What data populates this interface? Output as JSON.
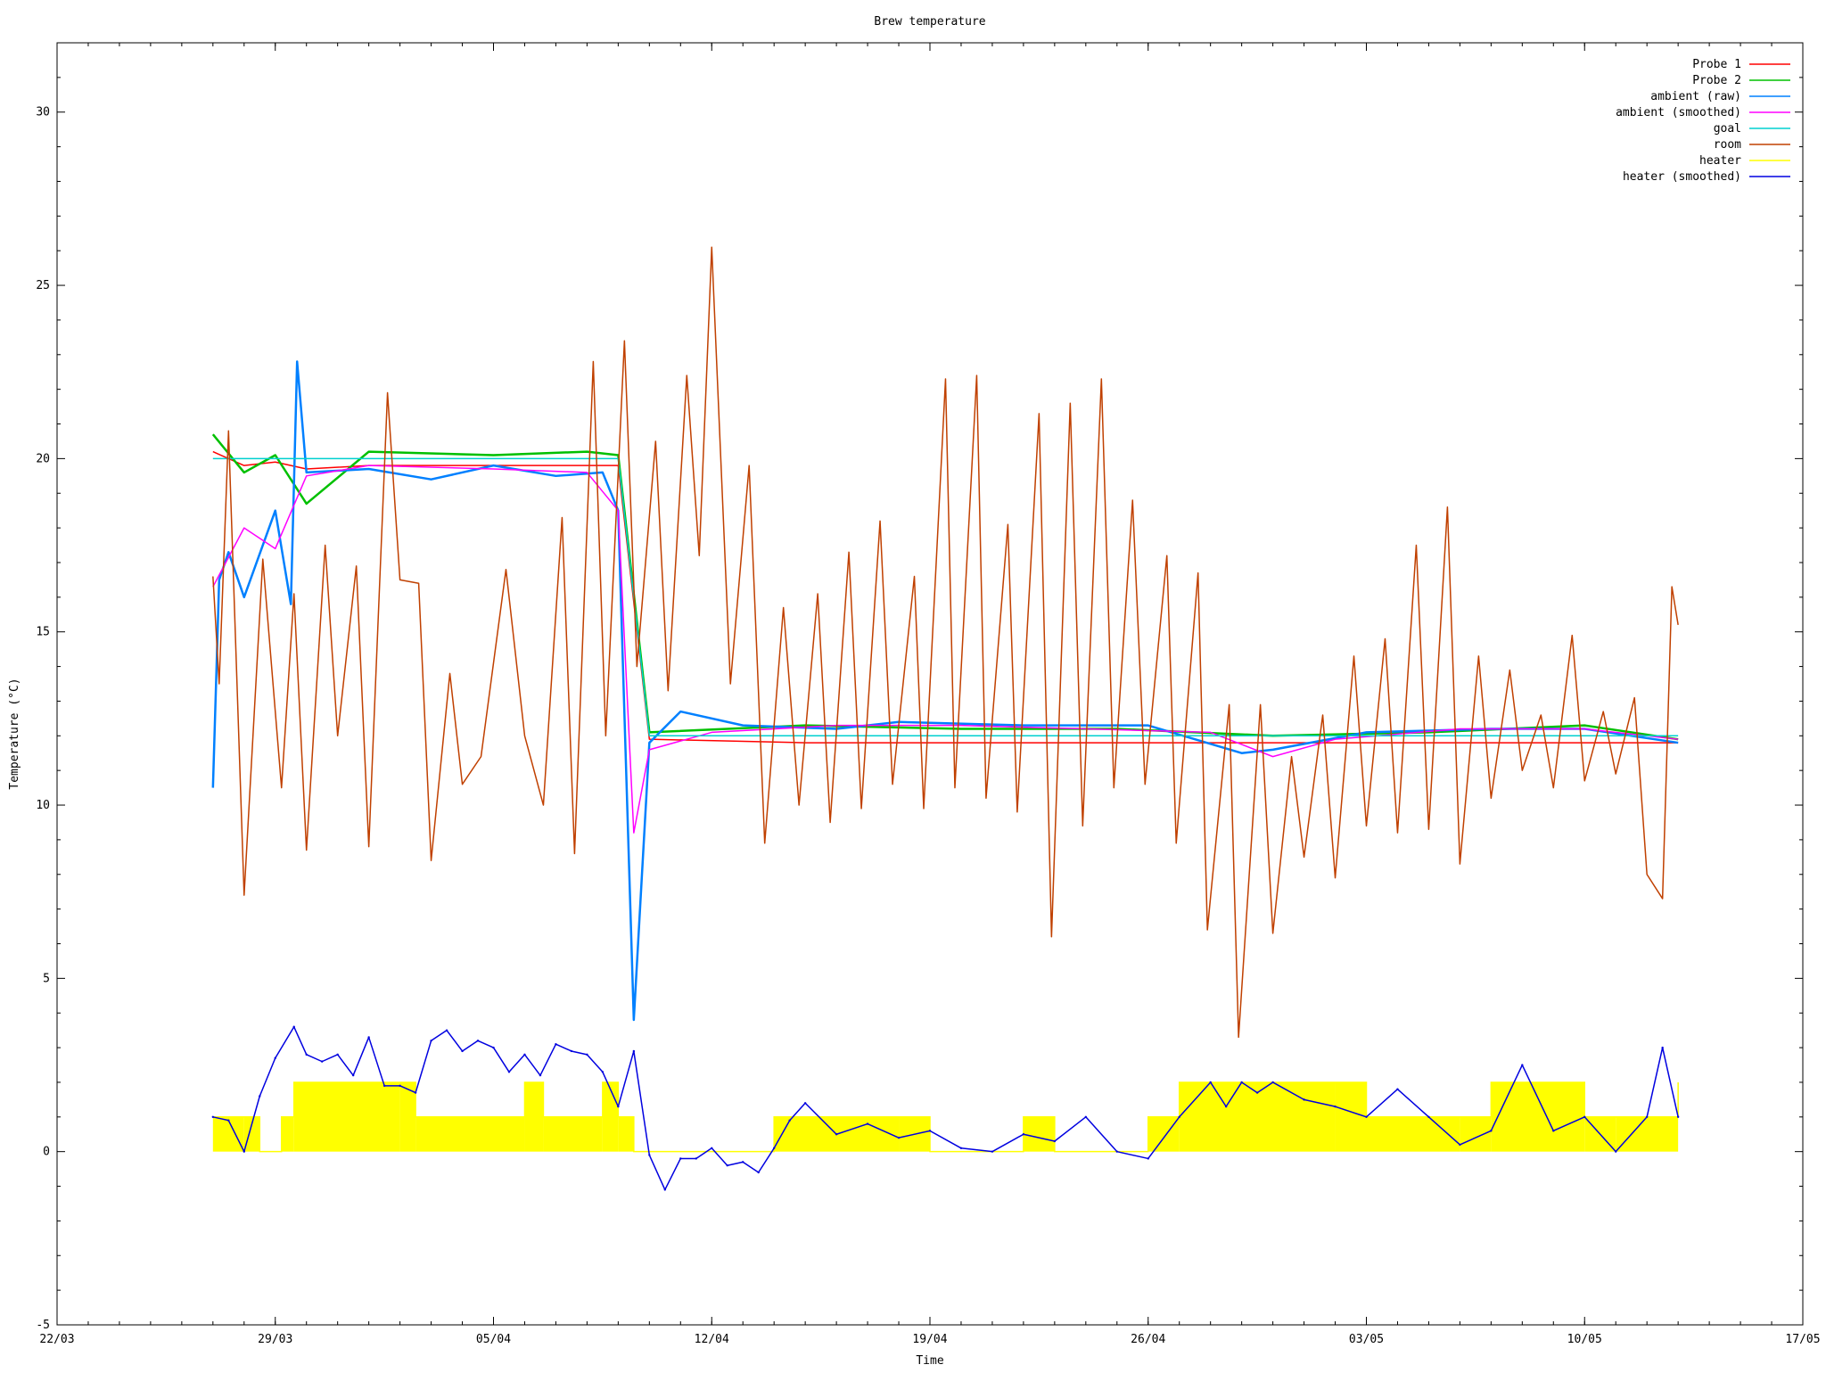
{
  "chart_data": {
    "type": "line",
    "title": "Brew temperature",
    "xlabel": "Time",
    "ylabel": "Temperature (°C)",
    "xlim": [
      "2015-03-22",
      "2015-05-17"
    ],
    "ylim": [
      -5,
      32
    ],
    "x_ticks": [
      {
        "date": "2015-03-22",
        "label": "22/03"
      },
      {
        "date": "2015-03-29",
        "label": "29/03"
      },
      {
        "date": "2015-04-05",
        "label": "05/04"
      },
      {
        "date": "2015-04-12",
        "label": "12/04"
      },
      {
        "date": "2015-04-19",
        "label": "19/04"
      },
      {
        "date": "2015-04-26",
        "label": "26/04"
      },
      {
        "date": "2015-05-03",
        "label": "03/05"
      },
      {
        "date": "2015-05-10",
        "label": "10/05"
      },
      {
        "date": "2015-05-17",
        "label": "17/05"
      }
    ],
    "y_ticks": [
      {
        "value": -5,
        "label": "-5"
      },
      {
        "value": 0,
        "label": "0"
      },
      {
        "value": 5,
        "label": "5"
      },
      {
        "value": 10,
        "label": "10"
      },
      {
        "value": 15,
        "label": "15"
      },
      {
        "value": 20,
        "label": "20"
      },
      {
        "value": 25,
        "label": "25"
      },
      {
        "value": 30,
        "label": "30"
      }
    ],
    "legend_position": "top-right",
    "grid": false,
    "series": [
      {
        "name": "Probe 1",
        "color": "#ff0000",
        "x": [
          "2015-03-27",
          "2015-03-28",
          "2015-03-29",
          "2015-03-30",
          "2015-04-01",
          "2015-04-05",
          "2015-04-08",
          "2015-04-09",
          "2015-04-10",
          "2015-04-15",
          "2015-04-20",
          "2015-04-25",
          "2015-04-30",
          "2015-05-05",
          "2015-05-10",
          "2015-05-13"
        ],
        "y": [
          20.2,
          19.8,
          19.9,
          19.7,
          19.8,
          19.8,
          19.8,
          19.8,
          11.9,
          11.8,
          11.8,
          11.8,
          11.8,
          11.8,
          11.8,
          11.8
        ]
      },
      {
        "name": "Probe 2",
        "color": "#00c000",
        "x": [
          "2015-03-27",
          "2015-03-28",
          "2015-03-29",
          "2015-03-30",
          "2015-04-01",
          "2015-04-05",
          "2015-04-08",
          "2015-04-09",
          "2015-04-10",
          "2015-04-15",
          "2015-04-20",
          "2015-04-25",
          "2015-04-30",
          "2015-05-05",
          "2015-05-10",
          "2015-05-13"
        ],
        "y": [
          20.7,
          19.6,
          20.1,
          18.7,
          20.2,
          20.1,
          20.2,
          20.1,
          12.1,
          12.3,
          12.2,
          12.2,
          12.0,
          12.1,
          12.3,
          11.9
        ]
      },
      {
        "name": "ambient (raw)",
        "color": "#0080ff",
        "x": [
          "2015-03-27",
          "2015-03-27.2",
          "2015-03-27.5",
          "2015-03-28",
          "2015-03-29",
          "2015-03-29.5",
          "2015-03-29.7",
          "2015-03-30",
          "2015-04-01",
          "2015-04-03",
          "2015-04-05",
          "2015-04-07",
          "2015-04-08.5",
          "2015-04-09",
          "2015-04-09.5",
          "2015-04-10",
          "2015-04-11",
          "2015-04-13",
          "2015-04-16",
          "2015-04-18",
          "2015-04-22",
          "2015-04-26",
          "2015-04-29",
          "2015-04-30",
          "2015-05-03",
          "2015-05-07",
          "2015-05-10",
          "2015-05-13"
        ],
        "y": [
          10.5,
          16.5,
          17.3,
          16.0,
          18.5,
          15.8,
          22.8,
          19.6,
          19.7,
          19.4,
          19.8,
          19.5,
          19.6,
          18.5,
          3.8,
          11.8,
          12.7,
          12.3,
          12.2,
          12.4,
          12.3,
          12.3,
          11.5,
          11.6,
          12.1,
          12.2,
          12.2,
          11.8
        ]
      },
      {
        "name": "ambient (smoothed)",
        "color": "#ff00ff",
        "x": [
          "2015-03-27",
          "2015-03-28",
          "2015-03-29",
          "2015-03-30",
          "2015-04-01",
          "2015-04-05",
          "2015-04-08",
          "2015-04-09",
          "2015-04-09.5",
          "2015-04-10",
          "2015-04-12",
          "2015-04-16",
          "2015-04-20",
          "2015-04-24",
          "2015-04-28",
          "2015-04-30",
          "2015-05-02",
          "2015-05-06",
          "2015-05-10",
          "2015-05-13"
        ],
        "y": [
          16.3,
          18.0,
          17.4,
          19.5,
          19.8,
          19.7,
          19.6,
          18.5,
          9.2,
          11.6,
          12.1,
          12.3,
          12.3,
          12.2,
          12.1,
          11.4,
          11.9,
          12.2,
          12.2,
          11.9
        ]
      },
      {
        "name": "goal",
        "color": "#00d0d0",
        "x": [
          "2015-03-27",
          "2015-04-09",
          "2015-04-10",
          "2015-05-13"
        ],
        "y": [
          20.0,
          20.0,
          12.0,
          12.0
        ]
      },
      {
        "name": "room",
        "color": "#c04000",
        "x": [
          "2015-03-27",
          "2015-03-27.2",
          "2015-03-27.5",
          "2015-03-28",
          "2015-03-28.6",
          "2015-03-29.2",
          "2015-03-29.6",
          "2015-03-30",
          "2015-03-30.6",
          "2015-03-31",
          "2015-03-31.6",
          "2015-04-01",
          "2015-04-01.6",
          "2015-04-02",
          "2015-04-02.6",
          "2015-04-03",
          "2015-04-03.6",
          "2015-04-04",
          "2015-04-04.6",
          "2015-04-05.4",
          "2015-04-06",
          "2015-04-06.6",
          "2015-04-07.2",
          "2015-04-07.6",
          "2015-04-08.2",
          "2015-04-08.6",
          "2015-04-09.2",
          "2015-04-09.6",
          "2015-04-10.2",
          "2015-04-10.6",
          "2015-04-11.2",
          "2015-04-11.6",
          "2015-04-12",
          "2015-04-12.6",
          "2015-04-13.2",
          "2015-04-13.7",
          "2015-04-14.3",
          "2015-04-14.8",
          "2015-04-15.4",
          "2015-04-15.8",
          "2015-04-16.4",
          "2015-04-16.8",
          "2015-04-17.4",
          "2015-04-17.8",
          "2015-04-18.5",
          "2015-04-18.8",
          "2015-04-19.5",
          "2015-04-19.8",
          "2015-04-20.5",
          "2015-04-20.8",
          "2015-04-21.5",
          "2015-04-21.8",
          "2015-04-22.5",
          "2015-04-22.9",
          "2015-04-23.5",
          "2015-04-23.9",
          "2015-04-24.5",
          "2015-04-24.9",
          "2015-04-25.5",
          "2015-04-25.9",
          "2015-04-26.6",
          "2015-04-26.9",
          "2015-04-27.6",
          "2015-04-27.9",
          "2015-04-28.6",
          "2015-04-28.9",
          "2015-04-29.6",
          "2015-04-30",
          "2015-04-30.6",
          "2015-05-01",
          "2015-05-01.6",
          "2015-05-02",
          "2015-05-02.6",
          "2015-05-03",
          "2015-05-03.6",
          "2015-05-04",
          "2015-05-04.6",
          "2015-05-05",
          "2015-05-05.6",
          "2015-05-06",
          "2015-05-06.6",
          "2015-05-07",
          "2015-05-07.6",
          "2015-05-08",
          "2015-05-08.6",
          "2015-05-09",
          "2015-05-09.6",
          "2015-05-10",
          "2015-05-10.6",
          "2015-05-11",
          "2015-05-11.6",
          "2015-05-12",
          "2015-05-12.5",
          "2015-05-12.8",
          "2015-05-13"
        ],
        "y": [
          16.6,
          13.5,
          20.8,
          7.4,
          17.1,
          10.5,
          16.1,
          8.7,
          17.5,
          12.0,
          16.9,
          8.8,
          21.9,
          16.5,
          16.4,
          8.4,
          13.8,
          10.6,
          11.4,
          16.8,
          12.0,
          10.0,
          18.3,
          8.6,
          22.8,
          12.0,
          23.4,
          14.0,
          20.5,
          13.3,
          22.4,
          17.2,
          26.1,
          13.5,
          19.8,
          8.9,
          15.7,
          10.0,
          16.1,
          9.5,
          17.3,
          9.9,
          18.2,
          10.6,
          16.6,
          9.9,
          22.3,
          10.5,
          22.4,
          10.2,
          18.1,
          9.8,
          21.3,
          6.2,
          21.6,
          9.4,
          22.3,
          10.5,
          18.8,
          10.6,
          17.2,
          8.9,
          16.7,
          6.4,
          12.9,
          3.3,
          12.9,
          6.3,
          11.4,
          8.5,
          12.6,
          7.9,
          14.3,
          9.4,
          14.8,
          9.2,
          17.5,
          9.3,
          18.6,
          8.3,
          14.3,
          10.2,
          13.9,
          11.0,
          12.6,
          10.5,
          14.9,
          10.7,
          12.7,
          10.9,
          13.1,
          8.0,
          7.3,
          16.3,
          15.2
        ]
      },
      {
        "name": "heater",
        "color": "#ffff00",
        "x": [
          "2015-03-27",
          "2015-03-28",
          "2015-03-28.5",
          "2015-03-29.2",
          "2015-03-29.6",
          "2015-04-02",
          "2015-04-02.5",
          "2015-04-06",
          "2015-04-06.6",
          "2015-04-08.5",
          "2015-04-09",
          "2015-04-09.5",
          "2015-04-10",
          "2015-04-13",
          "2015-04-14",
          "2015-04-18",
          "2015-04-19",
          "2015-04-22",
          "2015-04-23",
          "2015-04-26",
          "2015-04-27",
          "2015-05-02",
          "2015-05-03",
          "2015-05-06",
          "2015-05-07",
          "2015-05-10",
          "2015-05-11",
          "2015-05-13"
        ],
        "y": [
          1,
          1,
          0,
          1,
          2,
          2,
          1,
          2,
          1,
          2,
          1,
          0,
          0,
          0,
          1,
          1,
          0,
          1,
          0,
          1,
          2,
          2,
          1,
          1,
          2,
          1,
          1,
          2
        ]
      },
      {
        "name": "heater (smoothed)",
        "color": "#0000e0",
        "x": [
          "2015-03-27",
          "2015-03-27.5",
          "2015-03-28",
          "2015-03-28.5",
          "2015-03-29",
          "2015-03-29.6",
          "2015-03-30",
          "2015-03-30.5",
          "2015-03-31",
          "2015-03-31.5",
          "2015-04-01",
          "2015-04-01.5",
          "2015-04-02",
          "2015-04-02.5",
          "2015-04-03",
          "2015-04-03.5",
          "2015-04-04",
          "2015-04-04.5",
          "2015-04-05",
          "2015-04-05.5",
          "2015-04-06",
          "2015-04-06.5",
          "2015-04-07",
          "2015-04-07.5",
          "2015-04-08",
          "2015-04-08.5",
          "2015-04-09",
          "2015-04-09.5",
          "2015-04-10",
          "2015-04-10.5",
          "2015-04-11",
          "2015-04-11.5",
          "2015-04-12",
          "2015-04-12.5",
          "2015-04-13",
          "2015-04-13.5",
          "2015-04-14",
          "2015-04-14.5",
          "2015-04-15",
          "2015-04-16",
          "2015-04-17",
          "2015-04-18",
          "2015-04-19",
          "2015-04-20",
          "2015-04-21",
          "2015-04-22",
          "2015-04-23",
          "2015-04-24",
          "2015-04-25",
          "2015-04-26",
          "2015-04-27",
          "2015-04-28",
          "2015-04-28.5",
          "2015-04-29",
          "2015-04-29.5",
          "2015-04-30",
          "2015-05-01",
          "2015-05-02",
          "2015-05-03",
          "2015-05-04",
          "2015-05-05",
          "2015-05-06",
          "2015-05-07",
          "2015-05-08",
          "2015-05-09",
          "2015-05-10",
          "2015-05-11",
          "2015-05-12",
          "2015-05-12.5",
          "2015-05-13"
        ],
        "y": [
          1.0,
          0.9,
          0.0,
          1.6,
          2.7,
          3.6,
          2.8,
          2.6,
          2.8,
          2.2,
          3.3,
          1.9,
          1.9,
          1.7,
          3.2,
          3.5,
          2.9,
          3.2,
          3.0,
          2.3,
          2.8,
          2.2,
          3.1,
          2.9,
          2.8,
          2.3,
          1.3,
          2.9,
          -0.1,
          -1.1,
          -0.2,
          -0.2,
          0.1,
          -0.4,
          -0.3,
          -0.6,
          0.1,
          0.9,
          1.4,
          0.5,
          0.8,
          0.4,
          0.6,
          0.1,
          0.0,
          0.5,
          0.3,
          1.0,
          0.0,
          -0.2,
          1.0,
          2.0,
          1.3,
          2.0,
          1.7,
          2.0,
          1.5,
          1.3,
          1.0,
          1.8,
          1.0,
          0.2,
          0.6,
          2.5,
          0.6,
          1.0,
          0.0,
          1.0,
          3.0,
          1.0
        ]
      }
    ]
  }
}
